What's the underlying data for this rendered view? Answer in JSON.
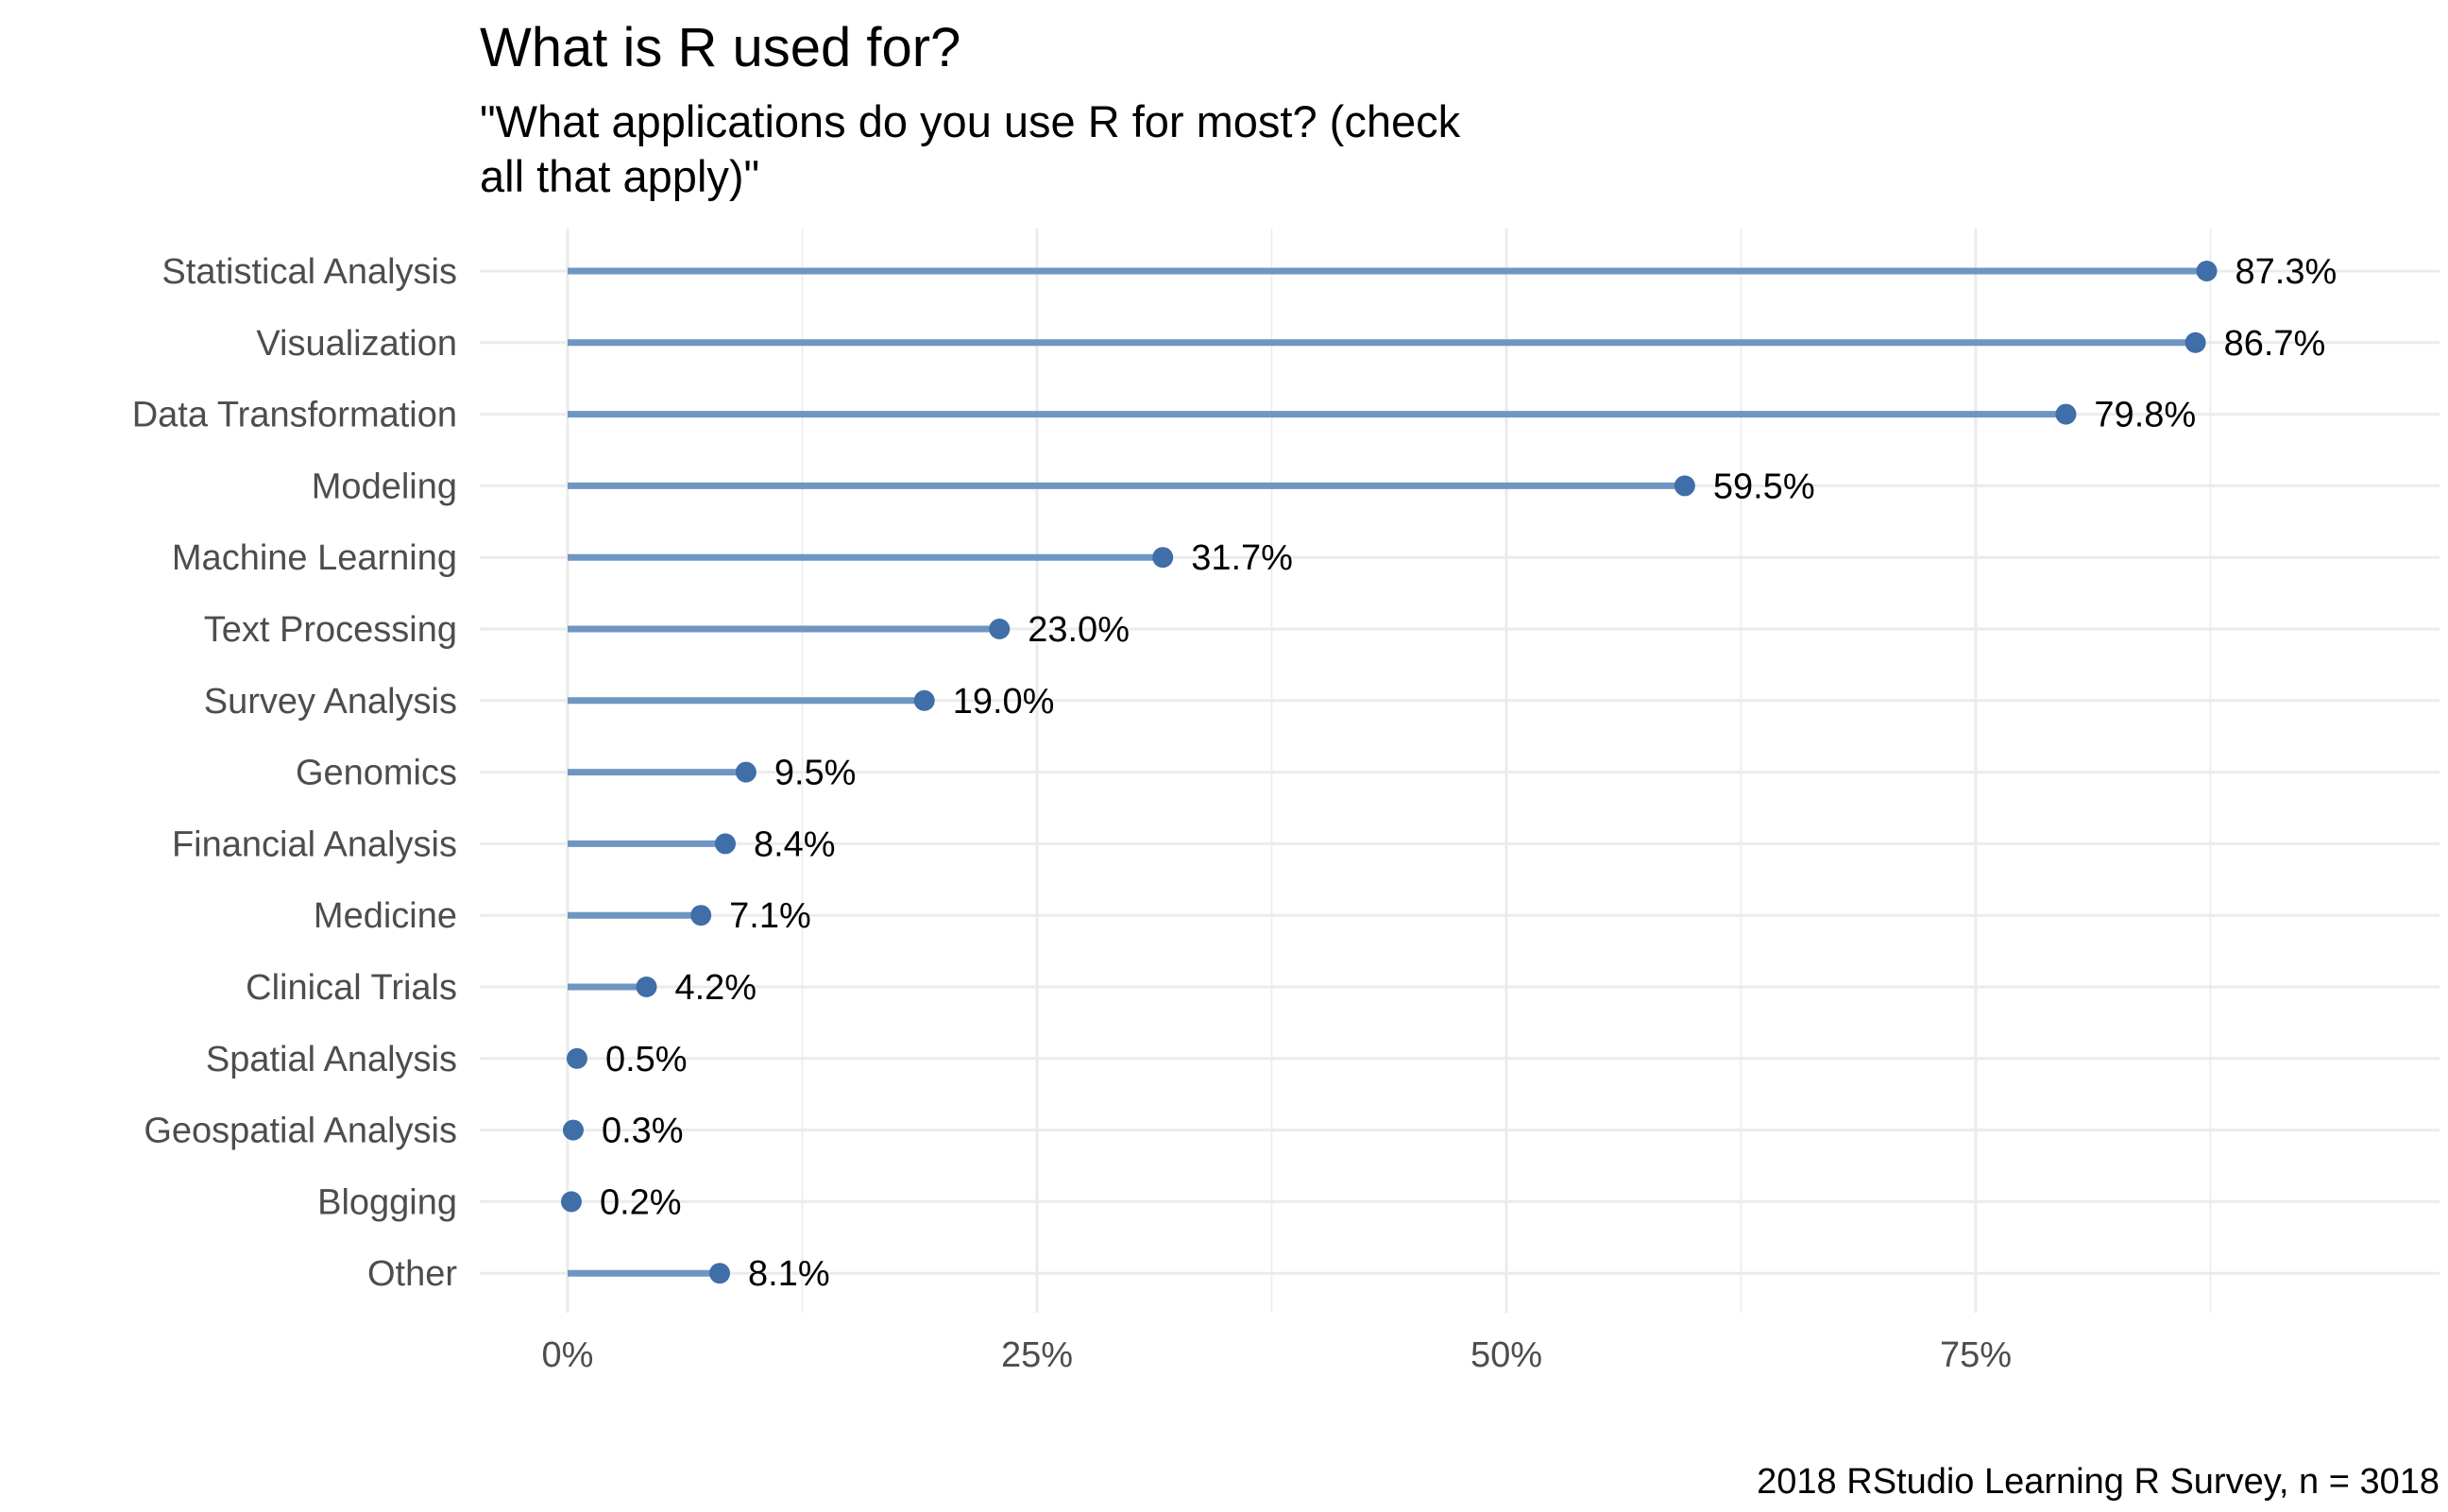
{
  "chart_data": {
    "type": "lollipop",
    "title": "What is R used for?",
    "subtitle_lines": [
      "\"What applications do you use R for most? (check",
      "all that apply)\""
    ],
    "caption": "2018 RStudio Learning R Survey, n = 3018",
    "xlabel": "",
    "ylabel": "",
    "xlim": [
      0,
      100
    ],
    "x_ticks": [
      0,
      25,
      50,
      75
    ],
    "x_tick_labels": [
      "0%",
      "25%",
      "50%",
      "75%"
    ],
    "grid": true,
    "color": "#3f6ea8",
    "stem_color": "#6f96c3",
    "categories": [
      "Statistical Analysis",
      "Visualization",
      "Data Transformation",
      "Modeling",
      "Machine Learning",
      "Text Processing",
      "Survey Analysis",
      "Genomics",
      "Financial Analysis",
      "Medicine",
      "Clinical Trials",
      "Spatial Analysis",
      "Geospatial Analysis",
      "Blogging",
      "Other"
    ],
    "values": [
      87.3,
      86.7,
      79.8,
      59.5,
      31.7,
      23.0,
      19.0,
      9.5,
      8.4,
      7.1,
      4.2,
      0.5,
      0.3,
      0.2,
      8.1
    ],
    "value_labels": [
      "87.3%",
      "86.7%",
      "79.8%",
      "59.5%",
      "31.7%",
      "23.0%",
      "19.0%",
      "9.5%",
      "8.4%",
      "7.1%",
      "4.2%",
      "0.5%",
      "0.3%",
      "0.2%",
      "8.1%"
    ]
  }
}
